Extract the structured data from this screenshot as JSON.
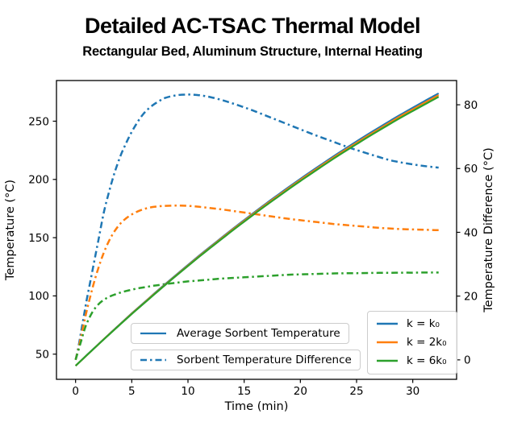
{
  "title": "Detailed AC-TSAC Thermal Model",
  "subtitle": "Rectangular Bed, Aluminum Structure, Internal Heating",
  "colors": {
    "blue": "#1f77b4",
    "orange": "#ff7f0e",
    "green": "#2ca02c",
    "axis": "#000000",
    "legend_border": "#cccccc"
  },
  "legends": {
    "avg_label": "Average Sorbent Temperature",
    "diff_label": "Sorbent Temperature Difference",
    "k_items": [
      {
        "label": "k = k₀",
        "color": "blue"
      },
      {
        "label": "k = 2k₀",
        "color": "orange"
      },
      {
        "label": "k = 6k₀",
        "color": "green"
      }
    ]
  },
  "chart_data": {
    "type": "line",
    "title": "Detailed AC-TSAC Thermal Model",
    "subtitle": "Rectangular Bed, Aluminum Structure, Internal Heating",
    "xlabel": "Time (min)",
    "ylabel_left": "Temperature (°C)",
    "ylabel_right": "Temperature Difference (°C)",
    "xlim": [
      -1.7,
      33.9
    ],
    "ylim_left": [
      28.4,
      284.9
    ],
    "ylim_right": [
      -6.1,
      87.6
    ],
    "xticks": [
      0,
      5,
      10,
      15,
      20,
      25,
      30
    ],
    "yticks_left": [
      50,
      100,
      150,
      200,
      250
    ],
    "yticks_right": [
      0,
      20,
      40,
      60,
      80
    ],
    "grid": false,
    "series": [
      {
        "id": "diff_k0",
        "name": "Sorbent Temperature Difference, k = k0",
        "axis": "right",
        "style": "dashdot",
        "color": "blue",
        "x": [
          0,
          0.25,
          0.5,
          0.75,
          1,
          1.5,
          2,
          2.5,
          3,
          3.5,
          4,
          4.5,
          5,
          5.5,
          6,
          6.5,
          7,
          7.5,
          8,
          9,
          10,
          11,
          12,
          13,
          14,
          15,
          16,
          17,
          18,
          19,
          20,
          21,
          22,
          23,
          24,
          25,
          26,
          27,
          28,
          29,
          30,
          31,
          32,
          32.3
        ],
        "y": [
          0,
          4,
          9,
          14,
          19,
          28,
          37,
          46,
          53,
          59,
          64,
          68,
          71.5,
          74.5,
          77,
          78.8,
          80.2,
          81.3,
          82.2,
          83,
          83.2,
          83,
          82.4,
          81.5,
          80.4,
          79.2,
          77.9,
          76.5,
          75.1,
          73.7,
          72.3,
          70.9,
          69.6,
          68.3,
          67,
          65.8,
          64.7,
          63.6,
          62.6,
          61.9,
          61.3,
          60.8,
          60.4,
          60.3
        ]
      },
      {
        "id": "diff_2k0",
        "name": "Sorbent Temperature Difference, k = 2k0",
        "axis": "right",
        "style": "dashdot",
        "color": "orange",
        "x": [
          0,
          0.25,
          0.5,
          0.75,
          1,
          1.5,
          2,
          2.5,
          3,
          3.5,
          4,
          4.5,
          5,
          5.5,
          6,
          6.5,
          7,
          7.5,
          8,
          9,
          10,
          11,
          12,
          13,
          14,
          15,
          16,
          17,
          18,
          19,
          20,
          21,
          22,
          23,
          24,
          25,
          26,
          27,
          28,
          29,
          30,
          31,
          32,
          32.3
        ],
        "y": [
          0,
          3.5,
          7.5,
          11.5,
          15.5,
          22.5,
          28.5,
          33.5,
          37.5,
          40.5,
          42.8,
          44.4,
          45.6,
          46.5,
          47.2,
          47.7,
          48,
          48.2,
          48.3,
          48.4,
          48.3,
          48,
          47.6,
          47.2,
          46.7,
          46.2,
          45.7,
          45.2,
          44.7,
          44.2,
          43.8,
          43.4,
          43,
          42.6,
          42.3,
          42,
          41.7,
          41.4,
          41.2,
          41,
          40.9,
          40.8,
          40.7,
          40.7
        ]
      },
      {
        "id": "diff_6k0",
        "name": "Sorbent Temperature Difference, k = 6k0",
        "axis": "right",
        "style": "dashdot",
        "color": "green",
        "x": [
          0,
          0.25,
          0.5,
          0.75,
          1,
          1.5,
          2,
          2.5,
          3,
          3.5,
          4,
          4.5,
          5,
          5.5,
          6,
          6.5,
          7,
          7.5,
          8,
          9,
          10,
          11,
          12,
          13,
          14,
          15,
          16,
          17,
          18,
          19,
          20,
          21,
          22,
          23,
          24,
          25,
          26,
          27,
          28,
          29,
          30,
          31,
          32,
          32.3
        ],
        "y": [
          0,
          3,
          6,
          9,
          11.5,
          15,
          17.3,
          18.8,
          19.8,
          20.5,
          21.1,
          21.6,
          22,
          22.4,
          22.7,
          23,
          23.3,
          23.5,
          23.8,
          24.2,
          24.6,
          24.9,
          25.2,
          25.5,
          25.7,
          25.9,
          26.1,
          26.3,
          26.5,
          26.7,
          26.8,
          26.9,
          27,
          27.1,
          27.15,
          27.2,
          27.25,
          27.3,
          27.3,
          27.35,
          27.35,
          27.4,
          27.4,
          27.4
        ]
      },
      {
        "id": "temp_k0",
        "name": "Average Sorbent Temperature, k = k0",
        "axis": "left",
        "style": "solid",
        "color": "blue",
        "x": [
          0,
          1,
          2,
          3,
          4,
          5,
          6,
          7,
          8,
          9,
          10,
          11,
          12,
          13,
          14,
          15,
          16,
          17,
          18,
          19,
          20,
          21,
          22,
          23,
          24,
          25,
          26,
          27,
          28,
          29,
          30,
          31,
          32,
          32.3
        ],
        "y": [
          40,
          49.2,
          58.3,
          67.3,
          76.2,
          85,
          93.5,
          102,
          110.3,
          118.5,
          126.6,
          134.6,
          142.4,
          150.1,
          157.7,
          165.1,
          172.5,
          179.7,
          186.7,
          193.7,
          200.5,
          207.2,
          213.7,
          220.2,
          226.5,
          232.6,
          238.7,
          244.6,
          250.4,
          256.1,
          261.6,
          267,
          272.3,
          273.9
        ]
      },
      {
        "id": "temp_2k0",
        "name": "Average Sorbent Temperature, k = 2k0",
        "axis": "left",
        "style": "solid",
        "color": "orange",
        "x": [
          0,
          1,
          2,
          3,
          4,
          5,
          6,
          7,
          8,
          9,
          10,
          11,
          12,
          13,
          14,
          15,
          16,
          17,
          18,
          19,
          20,
          21,
          22,
          23,
          24,
          25,
          26,
          27,
          28,
          29,
          30,
          31,
          32,
          32.3
        ],
        "y": [
          40,
          49.1,
          58.2,
          67.2,
          76,
          84.8,
          93.2,
          101.7,
          109.9,
          118.1,
          126.1,
          134.1,
          141.8,
          149.5,
          157.1,
          164.4,
          171.8,
          178.9,
          185.9,
          192.8,
          199.6,
          206.2,
          212.7,
          219.1,
          225.4,
          231.4,
          237.5,
          243.3,
          249.1,
          254.8,
          260.2,
          265.6,
          270.8,
          272.4
        ]
      },
      {
        "id": "temp_6k0",
        "name": "Average Sorbent Temperature, k = 6k0",
        "axis": "left",
        "style": "solid",
        "color": "green",
        "x": [
          0,
          1,
          2,
          3,
          4,
          5,
          6,
          7,
          8,
          9,
          10,
          11,
          12,
          13,
          14,
          15,
          16,
          17,
          18,
          19,
          20,
          21,
          22,
          23,
          24,
          25,
          26,
          27,
          28,
          29,
          30,
          31,
          32,
          32.3
        ],
        "y": [
          40,
          49.1,
          58.1,
          67,
          75.8,
          84.5,
          92.9,
          101.3,
          109.6,
          117.7,
          125.7,
          133.6,
          141.3,
          148.9,
          156.4,
          163.7,
          171,
          178.1,
          185,
          191.9,
          198.6,
          205.2,
          211.7,
          218.1,
          224.3,
          230.3,
          236.3,
          242.1,
          247.8,
          253.4,
          258.8,
          264.1,
          269.3,
          270.9
        ]
      }
    ],
    "legend_position": {
      "style_legend": "lower center",
      "k_legend": "lower right"
    }
  }
}
